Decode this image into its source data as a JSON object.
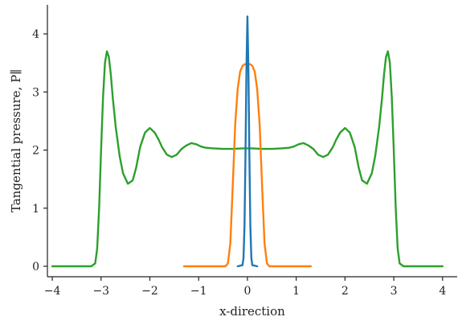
{
  "chart_data": {
    "type": "line",
    "xlabel": "x-direction",
    "ylabel": "Tangential pressure, P∥",
    "xlim": [
      -4.1,
      4.3
    ],
    "ylim": [
      -0.18,
      4.5
    ],
    "x_ticks": [
      -4,
      -3,
      -2,
      -1,
      0,
      1,
      2,
      3,
      4
    ],
    "x_tick_labels": [
      "−4",
      "−3",
      "−2",
      "−1",
      "0",
      "1",
      "2",
      "3",
      "4"
    ],
    "y_ticks": [
      0,
      1,
      2,
      3,
      4
    ],
    "y_tick_labels": [
      "0",
      "1",
      "2",
      "3",
      "4"
    ],
    "grid": false,
    "series": [
      {
        "color": "#2ca02c",
        "x": [
          -4.0,
          -3.2,
          -3.12,
          -3.08,
          -3.04,
          -3.0,
          -2.96,
          -2.92,
          -2.88,
          -2.84,
          -2.8,
          -2.76,
          -2.7,
          -2.62,
          -2.55,
          -2.45,
          -2.35,
          -2.28,
          -2.2,
          -2.1,
          -2.0,
          -1.9,
          -1.82,
          -1.75,
          -1.65,
          -1.55,
          -1.45,
          -1.35,
          -1.25,
          -1.15,
          -1.05,
          -0.95,
          -0.85,
          -0.7,
          -0.5,
          -0.3,
          -0.1,
          0.0,
          0.1,
          0.3,
          0.5,
          0.7,
          0.85,
          0.95,
          1.05,
          1.15,
          1.25,
          1.35,
          1.45,
          1.55,
          1.65,
          1.75,
          1.82,
          1.9,
          2.0,
          2.1,
          2.2,
          2.28,
          2.35,
          2.45,
          2.55,
          2.62,
          2.7,
          2.76,
          2.8,
          2.84,
          2.88,
          2.92,
          2.96,
          3.0,
          3.04,
          3.08,
          3.12,
          3.2,
          4.0
        ],
        "y": [
          0.0,
          0.0,
          0.05,
          0.3,
          1.0,
          2.0,
          2.9,
          3.5,
          3.7,
          3.6,
          3.3,
          2.9,
          2.4,
          1.9,
          1.6,
          1.42,
          1.48,
          1.7,
          2.05,
          2.3,
          2.38,
          2.3,
          2.18,
          2.05,
          1.92,
          1.88,
          1.92,
          2.02,
          2.08,
          2.12,
          2.1,
          2.06,
          2.04,
          2.03,
          2.02,
          2.02,
          2.03,
          2.03,
          2.03,
          2.02,
          2.02,
          2.03,
          2.04,
          2.06,
          2.1,
          2.12,
          2.08,
          2.02,
          1.92,
          1.88,
          1.92,
          2.05,
          2.18,
          2.3,
          2.38,
          2.3,
          2.05,
          1.7,
          1.48,
          1.42,
          1.6,
          1.9,
          2.4,
          2.9,
          3.3,
          3.6,
          3.7,
          3.5,
          2.9,
          2.0,
          1.0,
          0.3,
          0.05,
          0.0,
          0.0
        ]
      },
      {
        "color": "#ff7f0e",
        "x": [
          -1.3,
          -0.45,
          -0.4,
          -0.35,
          -0.3,
          -0.25,
          -0.2,
          -0.15,
          -0.1,
          -0.05,
          0.0,
          0.05,
          0.1,
          0.15,
          0.2,
          0.25,
          0.3,
          0.35,
          0.4,
          0.45,
          1.3
        ],
        "y": [
          0.0,
          0.0,
          0.05,
          0.4,
          1.4,
          2.45,
          3.05,
          3.35,
          3.45,
          3.48,
          3.48,
          3.48,
          3.45,
          3.35,
          3.05,
          2.45,
          1.4,
          0.4,
          0.05,
          0.0,
          0.0
        ]
      },
      {
        "color": "#1f77b4",
        "x": [
          -0.2,
          -0.1,
          -0.08,
          -0.06,
          -0.04,
          -0.02,
          0.0,
          0.02,
          0.04,
          0.06,
          0.08,
          0.1,
          0.2
        ],
        "y": [
          0.0,
          0.02,
          0.15,
          0.7,
          1.9,
          3.4,
          4.3,
          3.4,
          1.9,
          0.7,
          0.15,
          0.02,
          0.0
        ]
      }
    ]
  }
}
